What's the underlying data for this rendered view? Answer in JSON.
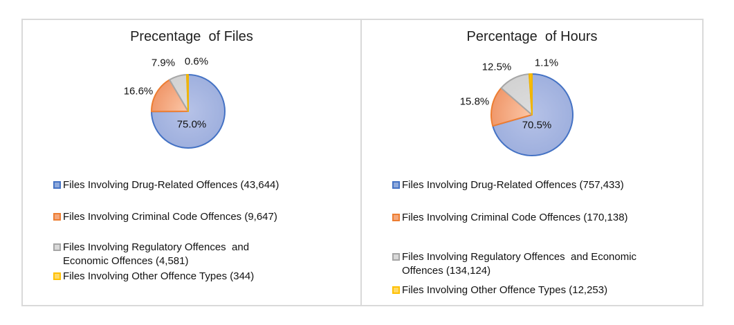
{
  "window": {
    "background": "#FFFFFF",
    "panel_border_color": "#D9D9D9"
  },
  "palette": [
    {
      "name": "blue",
      "pie_fill_inner": "#B6C2E7",
      "pie_fill_outer": "#9FB0DE",
      "border": "#4472C4",
      "legend_fill": "#8EA9DB",
      "legend_border": "#4472C4"
    },
    {
      "name": "orange",
      "pie_fill_inner": "#FBC7A8",
      "pie_fill_outer": "#F0986B",
      "border": "#ED7D31",
      "legend_fill": "#F4A77B",
      "legend_border": "#ED7D31"
    },
    {
      "name": "gray",
      "pie_fill_inner": "#DDDDDD",
      "pie_fill_outer": "#D2D2D2",
      "border": "#A6A6A6",
      "legend_fill": "#D9D9D9",
      "legend_border": "#A6A6A6"
    },
    {
      "name": "yellow",
      "pie_fill_inner": "#FFC82E",
      "pie_fill_outer": "#FFC000",
      "border": "#F0B400",
      "legend_fill": "#FFD966",
      "legend_border": "#FFC000"
    }
  ],
  "chart_data": [
    {
      "type": "pie",
      "title": "Precentage  of Files",
      "start_angle_deg": 0,
      "direction": "clockwise",
      "legend_position": "below",
      "slices": [
        {
          "series": "drug-related-offences",
          "legend": "Files Involving Drug-Related Offences (43,644)",
          "value_pct": 75.0,
          "count": 43644,
          "data_label": "75.0%",
          "label_placement": "inside"
        },
        {
          "series": "criminal-code-offences",
          "legend": "Files Involving Criminal Code Offences (9,647)",
          "value_pct": 16.6,
          "count": 9647,
          "data_label": "16.6%",
          "label_placement": "outside"
        },
        {
          "series": "regulatory-economic-offences",
          "legend": "Files Involving Regulatory Offences  and Economic Offences (4,581)",
          "value_pct": 7.9,
          "count": 4581,
          "data_label": "7.9%",
          "label_placement": "outside"
        },
        {
          "series": "other-offence-types",
          "legend": "Files Involving Other Offence Types (344)",
          "value_pct": 0.6,
          "count": 344,
          "data_label": "0.6%",
          "label_placement": "outside"
        }
      ]
    },
    {
      "type": "pie",
      "title": "Percentage  of Hours",
      "start_angle_deg": 0,
      "direction": "clockwise",
      "legend_position": "below",
      "slices": [
        {
          "series": "drug-related-offences",
          "legend": "Files Involving Drug-Related Offences (757,433)",
          "value_pct": 70.5,
          "count": 757433,
          "data_label": "70.5%",
          "label_placement": "inside"
        },
        {
          "series": "criminal-code-offences",
          "legend": "Files Involving Criminal Code Offences (170,138)",
          "value_pct": 15.8,
          "count": 170138,
          "data_label": "15.8%",
          "label_placement": "outside"
        },
        {
          "series": "regulatory-economic-offences",
          "legend": "Files Involving Regulatory Offences  and Economic Offences (134,124)",
          "value_pct": 12.5,
          "count": 134124,
          "data_label": "12.5%",
          "label_placement": "outside"
        },
        {
          "series": "other-offence-types",
          "legend": "Files Involving Other Offence Types (12,253)",
          "value_pct": 1.1,
          "count": 12253,
          "data_label": "1.1%",
          "label_placement": "outside"
        }
      ]
    }
  ]
}
